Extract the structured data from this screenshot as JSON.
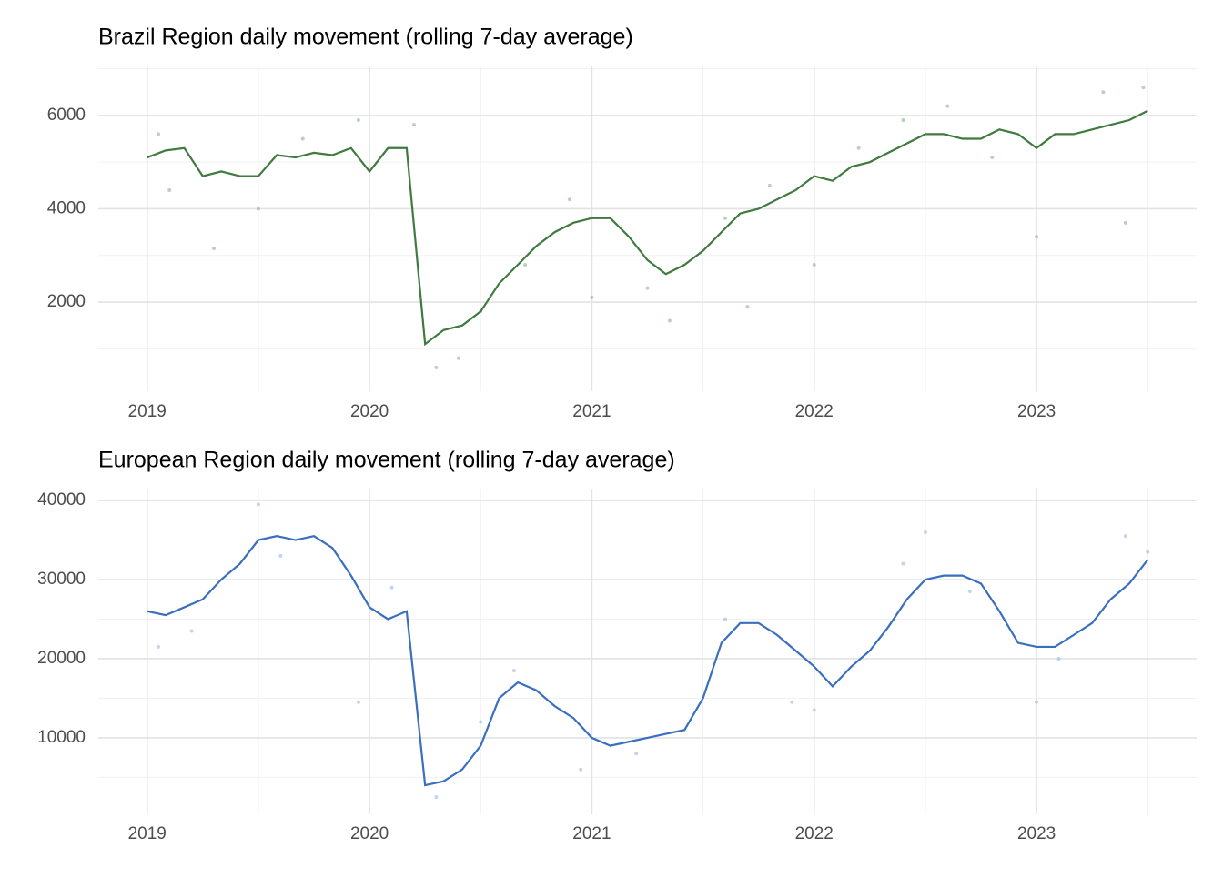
{
  "chart_data": [
    {
      "type": "line",
      "title": "Brazil Region daily movement (rolling 7-day average)",
      "xlim": [
        2018.78,
        2023.72
      ],
      "xticks": [
        2019,
        2020,
        2021,
        2022,
        2023
      ],
      "ylim": [
        90,
        7070
      ],
      "yticks": [
        2000,
        4000,
        6000
      ],
      "grid": true,
      "x": [
        2019.0,
        2019.083,
        2019.167,
        2019.25,
        2019.333,
        2019.417,
        2019.5,
        2019.583,
        2019.667,
        2019.75,
        2019.833,
        2019.917,
        2020.0,
        2020.083,
        2020.167,
        2020.25,
        2020.333,
        2020.417,
        2020.5,
        2020.583,
        2020.667,
        2020.75,
        2020.833,
        2020.917,
        2021.0,
        2021.083,
        2021.167,
        2021.25,
        2021.333,
        2021.417,
        2021.5,
        2021.583,
        2021.667,
        2021.75,
        2021.833,
        2021.917,
        2022.0,
        2022.083,
        2022.167,
        2022.25,
        2022.333,
        2022.417,
        2022.5,
        2022.583,
        2022.667,
        2022.75,
        2022.833,
        2022.917,
        2023.0,
        2023.083,
        2023.167,
        2023.25,
        2023.333,
        2023.417,
        2023.5
      ],
      "series": [
        {
          "color": "#3f7a3f",
          "values": [
            5100,
            5250,
            5300,
            4700,
            4800,
            4700,
            4700,
            5150,
            5100,
            5200,
            5150,
            5300,
            4800,
            5300,
            5300,
            1100,
            1400,
            1500,
            1800,
            2400,
            2800,
            3200,
            3500,
            3700,
            3800,
            3800,
            3400,
            2900,
            2600,
            2800,
            3100,
            3500,
            3900,
            4000,
            4200,
            4400,
            4700,
            4600,
            4900,
            5000,
            5200,
            5400,
            5600,
            5600,
            5500,
            5500,
            5700,
            5600,
            5300,
            5600,
            5600,
            5700,
            5800,
            5900,
            6100
          ]
        }
      ],
      "points": {
        "color": "#8fb38f",
        "x": [
          2019.05,
          2019.1,
          2019.3,
          2019.5,
          2019.7,
          2019.95,
          2020.2,
          2020.3,
          2020.4,
          2020.5,
          2020.7,
          2020.9,
          2021.0,
          2021.25,
          2021.35,
          2021.6,
          2021.7,
          2021.8,
          2022.0,
          2022.2,
          2022.4,
          2022.6,
          2022.8,
          2023.0,
          2023.3,
          2023.4,
          2023.48
        ],
        "values": [
          5600,
          4400,
          3150,
          4000,
          5500,
          5900,
          5800,
          600,
          800,
          1800,
          2800,
          4200,
          2100,
          2300,
          1600,
          3800,
          1900,
          4500,
          2800,
          5300,
          5900,
          6200,
          5100,
          3400,
          6500,
          3700,
          6600
        ]
      }
    },
    {
      "type": "line",
      "title": "European Region daily movement (rolling 7-day average)",
      "xlim": [
        2018.78,
        2023.72
      ],
      "xticks": [
        2019,
        2020,
        2021,
        2022,
        2023
      ],
      "ylim": [
        330,
        41500
      ],
      "yticks": [
        10000,
        20000,
        30000,
        40000
      ],
      "grid": true,
      "x": [
        2019.0,
        2019.083,
        2019.167,
        2019.25,
        2019.333,
        2019.417,
        2019.5,
        2019.583,
        2019.667,
        2019.75,
        2019.833,
        2019.917,
        2020.0,
        2020.083,
        2020.167,
        2020.25,
        2020.333,
        2020.417,
        2020.5,
        2020.583,
        2020.667,
        2020.75,
        2020.833,
        2020.917,
        2021.0,
        2021.083,
        2021.167,
        2021.25,
        2021.333,
        2021.417,
        2021.5,
        2021.583,
        2021.667,
        2021.75,
        2021.833,
        2021.917,
        2022.0,
        2022.083,
        2022.167,
        2022.25,
        2022.333,
        2022.417,
        2022.5,
        2022.583,
        2022.667,
        2022.75,
        2022.833,
        2022.917,
        2023.0,
        2023.083,
        2023.167,
        2023.25,
        2023.333,
        2023.417,
        2023.5
      ],
      "series": [
        {
          "color": "#3a6fbf",
          "values": [
            26000,
            25500,
            26500,
            27500,
            30000,
            32000,
            35000,
            35500,
            35000,
            35500,
            34000,
            30500,
            26500,
            25000,
            26000,
            4000,
            4500,
            6000,
            9000,
            15000,
            17000,
            16000,
            14000,
            12500,
            10000,
            9000,
            9500,
            10000,
            10500,
            11000,
            15000,
            22000,
            24500,
            24500,
            23000,
            21000,
            19000,
            16500,
            19000,
            21000,
            24000,
            27500,
            30000,
            30500,
            30500,
            29500,
            26000,
            22000,
            21500,
            21500,
            23000,
            24500,
            27500,
            29500,
            32500
          ]
        }
      ],
      "points": {
        "color": "#9db8e3",
        "x": [
          2019.05,
          2019.2,
          2019.5,
          2019.6,
          2019.95,
          2020.1,
          2020.3,
          2020.5,
          2020.65,
          2020.95,
          2021.2,
          2021.6,
          2021.9,
          2022.0,
          2022.4,
          2022.5,
          2022.7,
          2023.0,
          2023.1,
          2023.4,
          2023.5
        ],
        "values": [
          21500,
          23500,
          39500,
          33000,
          14500,
          29000,
          2500,
          12000,
          18500,
          6000,
          8000,
          25000,
          14500,
          13500,
          32000,
          36000,
          28500,
          14500,
          20000,
          35500,
          33500
        ]
      }
    }
  ]
}
